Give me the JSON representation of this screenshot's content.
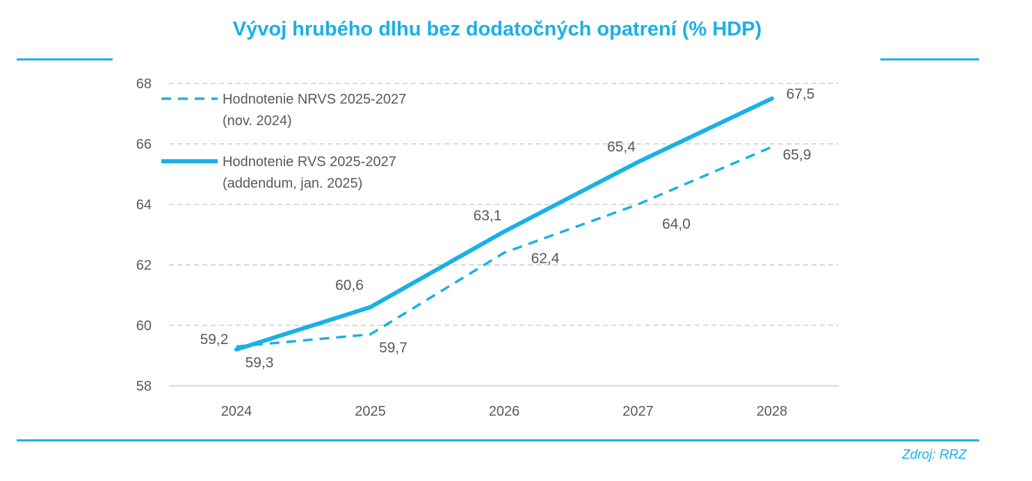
{
  "header": {
    "title": "Vývoj hrubého dlhu bez dodatočných opatrení (% HDP)"
  },
  "footer": {
    "source": "Zdroj: RRZ"
  },
  "colors": {
    "accent": "#1ab0e8",
    "grid": "#d9d9d9",
    "text": "#595959"
  },
  "chart_data": {
    "type": "line",
    "title": "Vývoj hrubého dlhu bez dodatočných opatrení (% HDP)",
    "xlabel": "",
    "ylabel": "",
    "categories": [
      "2024",
      "2025",
      "2026",
      "2027",
      "2028"
    ],
    "ylim": [
      58,
      68
    ],
    "yticks": [
      58,
      60,
      62,
      64,
      66,
      68
    ],
    "ytick_labels": [
      "58",
      "60",
      "62",
      "64",
      "66",
      "68"
    ],
    "grid": "horizontal dashed",
    "legend_position": "top-left",
    "series": [
      {
        "legend_line1": "Hodnotenie NRVS 2025-2027",
        "legend_line2": "(nov. 2024)",
        "style": "dashed",
        "values": [
          59.3,
          59.7,
          62.4,
          64.0,
          65.9
        ],
        "labels": [
          "59,3",
          "59,7",
          "62,4",
          "64,0",
          "65,9"
        ]
      },
      {
        "legend_line1": "Hodnotenie RVS 2025-2027",
        "legend_line2": "(addendum, jan. 2025)",
        "style": "solid",
        "values": [
          59.2,
          60.6,
          63.1,
          65.4,
          67.5
        ],
        "labels": [
          "59,2",
          "60,6",
          "63,1",
          "65,4",
          "67,5"
        ]
      }
    ]
  }
}
